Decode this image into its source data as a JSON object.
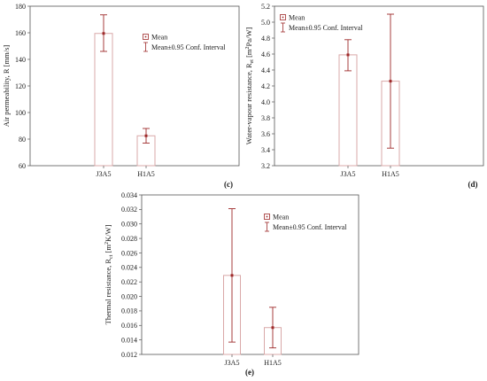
{
  "figure": {
    "colors": {
      "bar_stroke": "#d9a8a8",
      "error_bar": "#9e2a2a",
      "axis": "#555555",
      "grid": "#c8c8c8"
    }
  },
  "chart_data": [
    {
      "type": "bar",
      "panel_label": "(c)",
      "ylabel": "Air permeability, R [mm/s]",
      "categories": [
        "J3A5",
        "H1A5"
      ],
      "series": [
        {
          "name": "Mean",
          "values": [
            159.5,
            82.5
          ]
        },
        {
          "name": "Mean±0.95 Conf. Interval",
          "lower": [
            146,
            77
          ],
          "upper": [
            173.5,
            88
          ]
        }
      ],
      "yticks": [
        "60",
        "80",
        "100",
        "120",
        "140",
        "160",
        "180"
      ],
      "ylim": [
        60,
        180
      ],
      "grid": false,
      "legend": "top-right",
      "legend_entries": [
        "Mean",
        "Mean±0.95 Conf. Interval"
      ]
    },
    {
      "type": "bar",
      "panel_label": "(d)",
      "ylabel_main": "Water-vapour resistance, R",
      "ylabel_sub": "et",
      "ylabel_unit": " [m",
      "ylabel_sup": "2",
      "ylabel_tail": "Pa/W]",
      "categories": [
        "J3A5",
        "H1A5"
      ],
      "series": [
        {
          "name": "Mean",
          "values": [
            4.59,
            4.26
          ]
        },
        {
          "name": "Mean±0.95 Conf. Interval",
          "lower": [
            4.39,
            3.42
          ],
          "upper": [
            4.78,
            5.1
          ]
        }
      ],
      "yticks": [
        "3.2",
        "3.4",
        "3.6",
        "3.8",
        "4.0",
        "4.2",
        "4.4",
        "4.6",
        "4.8",
        "5.0",
        "5.2"
      ],
      "ylim": [
        3.2,
        5.2
      ],
      "grid": false,
      "legend": "top-left",
      "legend_entries": [
        "Mean",
        "Mean±0.95 Conf. Interval"
      ]
    },
    {
      "type": "bar",
      "panel_label": "(e)",
      "ylabel_main": "Thermal resistance, R",
      "ylabel_sub": "ct",
      "ylabel_unit": " [m",
      "ylabel_sup": "2",
      "ylabel_tail": "K/W]",
      "categories": [
        "J3A5",
        "H1A5"
      ],
      "series": [
        {
          "name": "Mean",
          "values": [
            0.0229,
            0.0157
          ]
        },
        {
          "name": "Mean±0.95 Conf. Interval",
          "lower": [
            0.0137,
            0.0129
          ],
          "upper": [
            0.0321,
            0.0185
          ]
        }
      ],
      "yticks": [
        "0.012",
        "0.014",
        "0.016",
        "0.018",
        "0.020",
        "0.022",
        "0.024",
        "0.026",
        "0.028",
        "0.030",
        "0.032",
        "0.034"
      ],
      "ylim": [
        0.012,
        0.034
      ],
      "grid": false,
      "legend": "top-right",
      "legend_entries": [
        "Mean",
        "Mean±0.95 Conf. Interval"
      ]
    }
  ]
}
